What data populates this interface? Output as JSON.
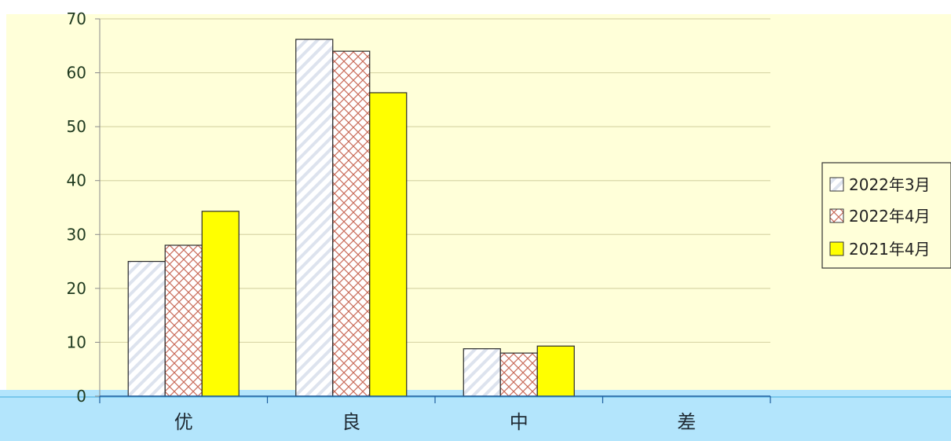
{
  "chart_data": {
    "type": "bar",
    "categories": [
      "优",
      "良",
      "中",
      "差"
    ],
    "series": [
      {
        "name": "2022年3月",
        "values": [
          25,
          66.2,
          8.8,
          0
        ]
      },
      {
        "name": "2022年4月",
        "values": [
          28,
          64,
          8,
          0
        ]
      },
      {
        "name": "2021年4月",
        "values": [
          34.3,
          56.3,
          9.3,
          0
        ]
      }
    ],
    "yticks": [
      0,
      10,
      20,
      30,
      40,
      50,
      60,
      70
    ],
    "ylim": [
      0,
      70
    ],
    "grid": true,
    "legend_position": "right",
    "colors": {
      "plot_background": "#ffffd9",
      "floor": "#b3e5fc",
      "gridline": "#d9d7a8",
      "series_3": "#ffff00",
      "series_2_pattern": "#c96c5a",
      "series_1_pattern": "#dfe4ef"
    }
  }
}
